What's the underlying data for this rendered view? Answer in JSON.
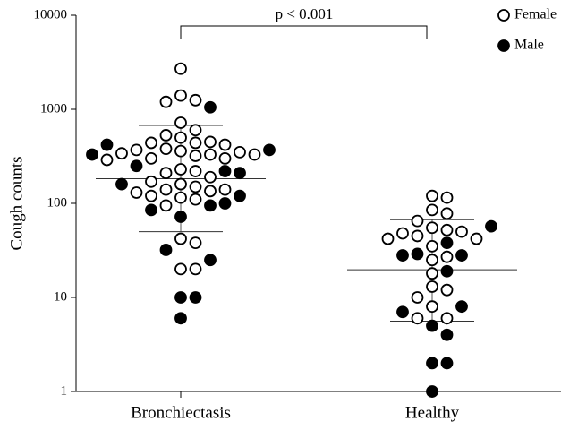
{
  "chart_data": {
    "type": "dotplot",
    "ylabel": "Cough counts",
    "annotation": "p < 0.001",
    "log_scale": true,
    "ylim": [
      1,
      10000
    ],
    "yticks": [
      1,
      10,
      100,
      1000,
      10000
    ],
    "categories": [
      "Bronchiectasis",
      "Healthy"
    ],
    "series": [
      {
        "name": "Female",
        "filled": false,
        "color": "#000000",
        "values": [
          [
            2700,
            1400,
            1250,
            1200,
            720,
            600,
            530,
            500,
            450,
            440,
            440,
            420,
            380,
            370,
            360,
            350,
            340,
            330,
            330,
            320,
            300,
            300,
            290,
            230,
            220,
            210,
            190,
            170,
            160,
            150,
            140,
            140,
            135,
            130,
            120,
            115,
            110,
            95,
            42,
            38,
            20,
            20
          ],
          [
            120,
            115,
            85,
            78,
            65,
            55,
            52,
            50,
            48,
            45,
            42,
            42,
            35,
            27,
            25,
            18,
            13,
            12,
            10,
            8,
            6,
            6
          ]
        ]
      },
      {
        "name": "Male",
        "filled": true,
        "color": "#000000",
        "values": [
          [
            1050,
            420,
            370,
            330,
            250,
            220,
            210,
            160,
            120,
            100,
            95,
            85,
            72,
            32,
            25,
            10,
            10,
            6
          ],
          [
            57,
            38,
            29,
            28,
            28,
            19,
            8,
            7,
            5,
            4,
            2,
            2,
            1
          ]
        ]
      }
    ],
    "median": [
      183,
      19.7
    ],
    "q1": [
      50,
      5.6
    ],
    "q3": [
      674,
      67
    ]
  }
}
